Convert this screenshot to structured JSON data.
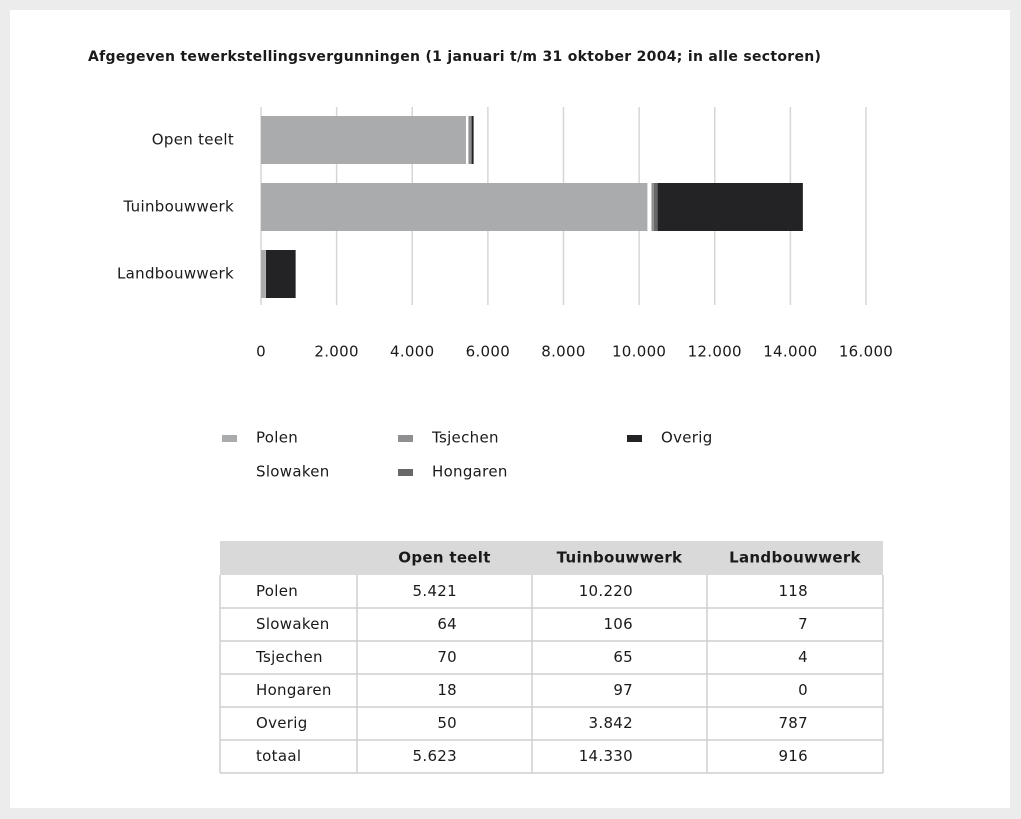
{
  "chart_data": {
    "type": "bar",
    "orientation": "horizontal",
    "stacked": true,
    "title": "Afgegeven tewerkstellingsvergunningen (1 januari t/m 31 oktober 2004; in alle sectoren)",
    "categories": [
      "Open teelt",
      "Tuinbouwwerk",
      "Landbouwwerk"
    ],
    "series": [
      {
        "name": "Polen",
        "color": "#aaabad",
        "values": [
          5421,
          10220,
          118
        ]
      },
      {
        "name": "Slowaken",
        "color": "#ffffff",
        "values": [
          64,
          106,
          7
        ]
      },
      {
        "name": "Tsjechen",
        "color": "#8f8f91",
        "values": [
          70,
          65,
          4
        ]
      },
      {
        "name": "Hongaren",
        "color": "#68686a",
        "values": [
          18,
          97,
          0
        ]
      },
      {
        "name": "Overig",
        "color": "#232325",
        "values": [
          50,
          3842,
          787
        ]
      }
    ],
    "xlim": [
      0,
      16000
    ],
    "xticks": [
      0,
      {
        "value": 2000,
        "label": "2.000"
      },
      {
        "value": 4000,
        "label": "4.000"
      },
      {
        "value": 6000,
        "label": "6.000"
      },
      {
        "value": 8000,
        "label": "8.000"
      },
      {
        "value": 10000,
        "label": "10.000"
      },
      {
        "value": 12000,
        "label": "12.000"
      },
      {
        "value": 14000,
        "label": "14.000"
      },
      {
        "value": 16000,
        "label": "16.000"
      }
    ],
    "grid": true,
    "legend": "bottom"
  },
  "table": {
    "header": [
      "Open teelt",
      "Tuinbouwwerk",
      "Landbouwwerk"
    ],
    "rows": [
      [
        "Polen",
        "5.421",
        "10.220",
        "118"
      ],
      [
        "Slowaken",
        "64",
        "106",
        "7"
      ],
      [
        "Tsjechen",
        "70",
        "65",
        "4"
      ],
      [
        "Hongaren",
        "18",
        "97",
        "0"
      ],
      [
        "Overig",
        "50",
        "3.842",
        "787"
      ],
      [
        "totaal",
        "5.623",
        "14.330",
        "916"
      ]
    ]
  }
}
